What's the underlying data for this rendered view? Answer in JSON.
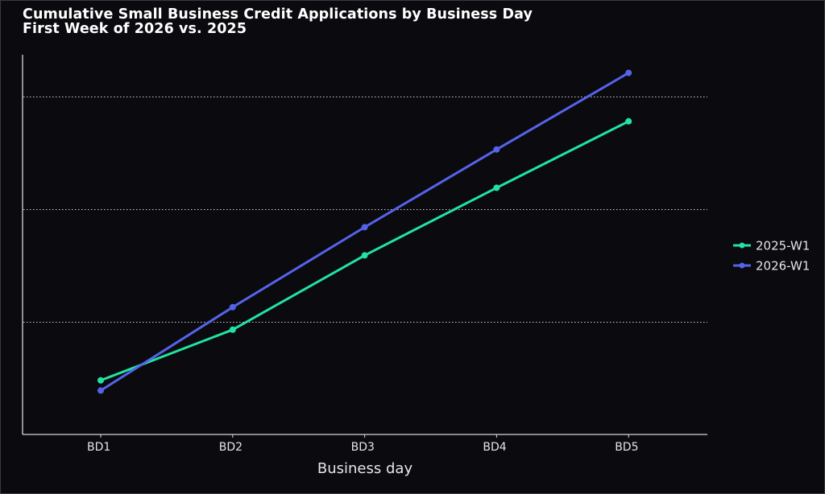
{
  "chart_data": {
    "type": "line",
    "title": "Cumulative Small Business Credit Applications by Business Day",
    "subtitle": "First Week of 2026 vs. 2025",
    "xlabel": "Business day",
    "ylabel": "",
    "categories": [
      "BD1",
      "BD2",
      "BD3",
      "BD4",
      "BD5"
    ],
    "y_units_note": "No y-axis tick labels shown; values in gridline units (gridlines at 1, 2, 3)",
    "ylim": [
      0,
      3.37
    ],
    "gridlines": [
      1,
      2,
      3
    ],
    "grid": "horizontal dotted",
    "legend_position": "right",
    "series": [
      {
        "name": "2025-W1",
        "color": "#22e3a0",
        "values": [
          0.48,
          0.93,
          1.59,
          2.19,
          2.78
        ]
      },
      {
        "name": "2026-W1",
        "color": "#5563e8",
        "values": [
          0.39,
          1.13,
          1.84,
          2.53,
          3.21
        ]
      }
    ]
  }
}
